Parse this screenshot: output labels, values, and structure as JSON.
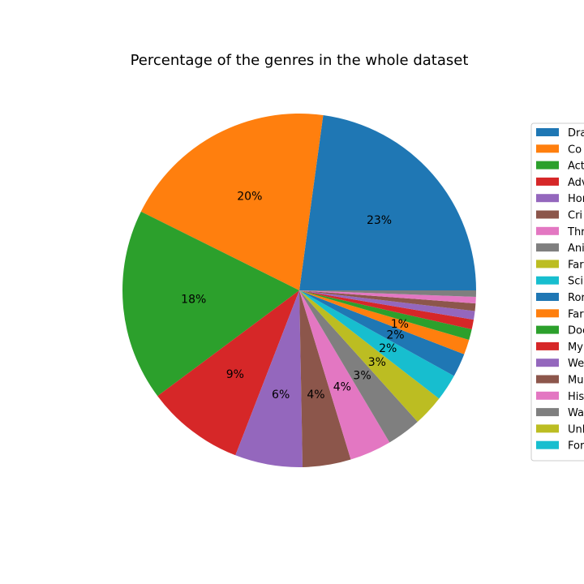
{
  "chart_data": {
    "type": "pie",
    "title": "Percentage of the genres in the whole dataset",
    "legend_position": "right",
    "legend_entries_visible": [
      "Dra",
      "Co",
      "Act",
      "Adv",
      "Hor",
      "Cri",
      "Thr",
      "Ani",
      "Far",
      "Sci",
      "Ror",
      "Far",
      "Doc",
      "My",
      "We",
      "Mu",
      "His",
      "Wa",
      "Unl",
      "For"
    ],
    "slices": [
      {
        "legend": "Dra",
        "value": 23.3,
        "label": "23%",
        "color": "#1f77b4"
      },
      {
        "legend": "Co",
        "value": 20.2,
        "label": "20%",
        "color": "#ff7f0e"
      },
      {
        "legend": "Act",
        "value": 17.9,
        "label": "18%",
        "color": "#2ca02c"
      },
      {
        "legend": "Adv",
        "value": 9.1,
        "label": "9%",
        "color": "#d62728"
      },
      {
        "legend": "Hor",
        "value": 6.3,
        "label": "6%",
        "color": "#9467bd"
      },
      {
        "legend": "Cri",
        "value": 4.5,
        "label": "4%",
        "color": "#8c564b"
      },
      {
        "legend": "Thr",
        "value": 3.9,
        "label": "4%",
        "color": "#e377c2"
      },
      {
        "legend": "Ani",
        "value": 3.2,
        "label": "3%",
        "color": "#7f7f7f"
      },
      {
        "legend": "Far",
        "value": 2.9,
        "label": "3%",
        "color": "#bcbd22"
      },
      {
        "legend": "Sci",
        "value": 2.5,
        "label": "2%",
        "color": "#17becf"
      },
      {
        "legend": "Ror",
        "value": 2.2,
        "label": "2%",
        "color": "#1f77b4"
      },
      {
        "legend": "Far",
        "value": 1.4,
        "label": "1%",
        "color": "#ff7f0e"
      },
      {
        "legend": "Doc",
        "value": 1.0,
        "label": "",
        "color": "#2ca02c"
      },
      {
        "legend": "My",
        "value": 0.9,
        "label": "",
        "color": "#d62728"
      },
      {
        "legend": "We",
        "value": 0.8,
        "label": "",
        "color": "#9467bd"
      },
      {
        "legend": "Mu",
        "value": 0.7,
        "label": "",
        "color": "#8c564b"
      },
      {
        "legend": "His",
        "value": 0.6,
        "label": "",
        "color": "#e377c2"
      },
      {
        "legend": "Wa",
        "value": 0.6,
        "label": "",
        "color": "#7f7f7f"
      },
      {
        "legend": "Unl",
        "value": 0.0,
        "label": "",
        "color": "#bcbd22"
      },
      {
        "legend": "For",
        "value": 0.0,
        "label": "",
        "color": "#17becf"
      }
    ]
  }
}
